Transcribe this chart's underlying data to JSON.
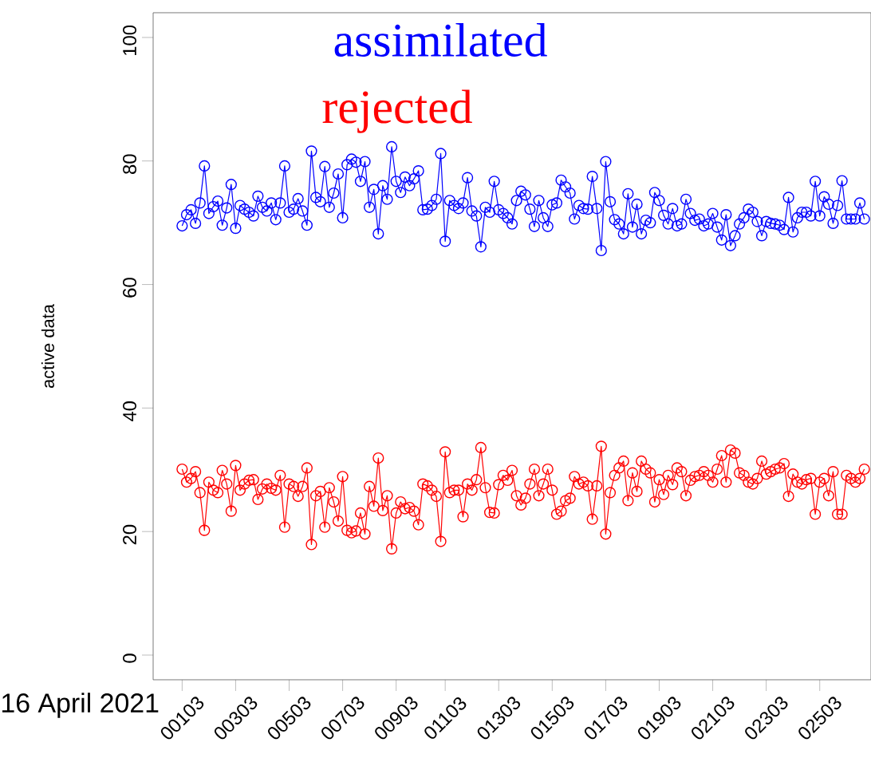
{
  "chart_data": {
    "type": "line",
    "ylabel": "active data",
    "marker": "circle",
    "legend": "top",
    "ylim": [
      -4,
      104
    ],
    "categories": [
      null,
      null,
      null,
      null,
      null,
      null,
      "00103",
      null,
      null,
      null,
      null,
      null,
      null,
      null,
      null,
      null,
      null,
      null,
      "00303",
      null,
      null,
      null,
      null,
      null,
      null,
      null,
      null,
      null,
      null,
      null,
      "00503",
      null,
      null,
      null,
      null,
      null,
      null,
      null,
      null,
      null,
      null,
      null,
      "00703",
      null,
      null,
      null,
      null,
      null,
      null,
      null,
      null,
      null,
      null,
      null,
      "00903",
      null,
      null,
      null,
      null,
      null,
      null,
      null,
      null,
      null,
      null,
      "01103",
      null,
      null,
      null,
      null,
      null,
      null,
      null,
      null,
      null,
      null,
      null,
      "01303",
      null,
      null,
      null,
      null,
      null,
      null,
      null,
      null,
      null,
      null,
      null,
      "01503",
      null,
      null,
      null,
      null,
      null,
      null,
      null,
      null,
      null,
      null,
      null,
      "01703",
      null,
      null,
      null,
      null,
      null,
      null,
      null,
      null,
      null,
      null,
      null,
      "01903",
      null,
      null,
      null,
      null,
      null,
      null,
      null,
      null,
      null,
      null,
      null,
      "02103",
      null,
      null,
      null,
      null,
      null,
      null,
      null,
      null,
      null,
      null,
      null,
      "02303",
      null,
      null,
      null,
      null,
      null,
      null,
      null,
      null,
      null,
      null,
      null,
      "02503",
      null,
      null,
      null,
      null,
      null,
      null,
      null,
      null,
      null,
      null,
      null
    ],
    "yticks": [
      0,
      20,
      40,
      60,
      80,
      100
    ],
    "annotations": [
      "16 April 2021"
    ],
    "series": [
      {
        "name": "assimilated",
        "color": "#0000ff",
        "values": [
          null,
          null,
          null,
          null,
          null,
          null,
          69.5,
          71.3,
          72.1,
          69.9,
          73.2,
          79.2,
          71.5,
          72.6,
          73.5,
          69.6,
          72.4,
          76.2,
          69.1,
          72.8,
          72.2,
          71.7,
          71.1,
          74.3,
          72.5,
          71.9,
          73.2,
          70.5,
          73.2,
          79.2,
          71.7,
          72.2,
          73.9,
          71.9,
          69.6,
          81.6,
          74.1,
          73.4,
          79.1,
          72.5,
          74.8,
          77.9,
          70.8,
          79.4,
          80.3,
          79.8,
          76.7,
          79.9,
          72.5,
          75.4,
          68.2,
          76.0,
          73.8,
          82.3,
          76.7,
          74.9,
          77.4,
          76.0,
          77.1,
          78.4,
          72.1,
          72.2,
          72.8,
          73.8,
          81.2,
          67.0,
          73.6,
          72.8,
          72.3,
          73.2,
          77.3,
          71.9,
          71.1,
          66.1,
          72.5,
          71.7,
          76.7,
          72.1,
          71.5,
          70.8,
          69.8,
          73.6,
          75.1,
          74.5,
          72.2,
          69.4,
          73.6,
          70.8,
          69.4,
          72.9,
          73.2,
          76.9,
          75.8,
          74.8,
          70.6,
          72.8,
          72.3,
          72.2,
          77.5,
          72.3,
          65.5,
          79.9,
          73.4,
          70.5,
          69.8,
          68.2,
          74.7,
          69.3,
          73.0,
          68.2,
          70.4,
          70.0,
          74.9,
          73.6,
          71.2,
          69.8,
          72.3,
          69.5,
          69.8,
          73.8,
          71.5,
          70.4,
          70.6,
          69.5,
          69.8,
          71.5,
          69.3,
          67.2,
          71.3,
          66.3,
          67.9,
          69.8,
          70.8,
          72.2,
          71.7,
          70.2,
          67.9,
          70.2,
          69.9,
          69.8,
          69.6,
          68.9,
          74.1,
          68.5,
          70.8,
          71.7,
          71.7,
          71.1,
          76.7,
          71.1,
          74.2,
          73.0,
          69.9,
          72.8,
          76.8,
          70.6,
          70.6,
          70.6,
          73.2,
          70.6,
          null
        ]
      },
      {
        "name": "rejected",
        "color": "#ff0000",
        "values": [
          null,
          null,
          null,
          null,
          null,
          null,
          30.1,
          28.0,
          28.6,
          29.7,
          26.3,
          20.2,
          28.0,
          26.7,
          26.3,
          29.9,
          27.7,
          23.3,
          30.7,
          26.7,
          27.7,
          28.3,
          28.4,
          25.2,
          26.9,
          27.7,
          27.0,
          26.7,
          29.1,
          20.7,
          27.7,
          27.3,
          25.7,
          27.3,
          30.3,
          17.9,
          25.8,
          26.5,
          20.7,
          27.1,
          24.8,
          21.7,
          28.9,
          20.2,
          19.8,
          20.1,
          23.0,
          19.6,
          27.3,
          24.1,
          31.9,
          23.4,
          25.8,
          17.2,
          23.0,
          24.8,
          23.7,
          23.9,
          23.3,
          21.1,
          27.7,
          27.4,
          26.7,
          25.7,
          18.4,
          32.9,
          26.3,
          26.7,
          26.7,
          22.4,
          27.7,
          26.7,
          28.4,
          33.6,
          27.1,
          23.1,
          23.0,
          27.6,
          29.1,
          28.3,
          29.9,
          25.8,
          24.3,
          25.4,
          27.7,
          30.1,
          25.8,
          27.7,
          30.1,
          26.7,
          22.8,
          23.3,
          25.0,
          25.4,
          28.9,
          27.7,
          28.0,
          27.4,
          22.0,
          27.4,
          33.8,
          19.6,
          26.3,
          29.1,
          30.3,
          31.4,
          25.0,
          29.5,
          26.5,
          31.4,
          30.1,
          29.5,
          24.8,
          28.4,
          26.0,
          29.1,
          27.6,
          30.3,
          29.7,
          25.8,
          28.3,
          28.9,
          29.1,
          29.7,
          29.1,
          28.0,
          30.1,
          32.3,
          28.0,
          33.2,
          32.7,
          29.5,
          29.1,
          28.0,
          27.7,
          28.6,
          31.4,
          29.3,
          29.7,
          30.1,
          30.3,
          31.0,
          25.7,
          29.3,
          28.0,
          27.7,
          28.4,
          28.6,
          22.8,
          28.0,
          28.6,
          25.8,
          29.7,
          22.8,
          22.8,
          29.1,
          28.6,
          28.0,
          28.6,
          30.1,
          null
        ]
      }
    ]
  }
}
